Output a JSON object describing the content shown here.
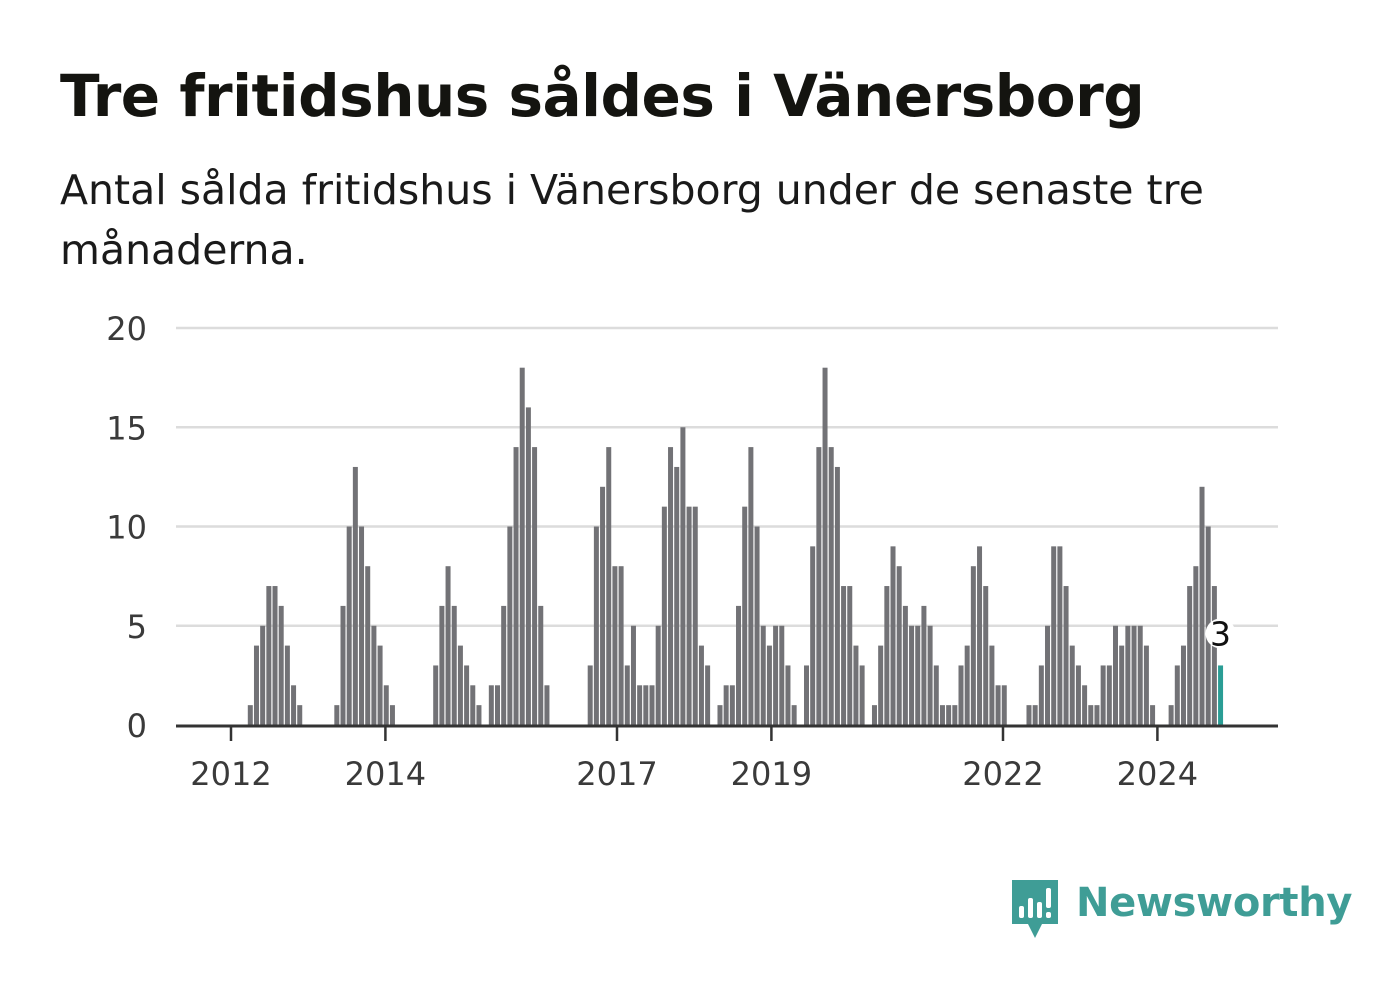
{
  "title": "Tre fritidshus såldes i Vänersborg",
  "subtitle": "Antal sålda fritidshus i Vänersborg under de senaste tre månaderna.",
  "brand": {
    "name": "Newsworthy",
    "color": "#3f9d96",
    "icon": "newsworthy-bar-chart-icon"
  },
  "chart_data": {
    "type": "bar",
    "title": "Tre fritidshus såldes i Vänersborg",
    "subtitle": "Antal sålda fritidshus i Vänersborg under de senaste tre månaderna.",
    "x_ticks": [
      "2012",
      "2014",
      "2017",
      "2019",
      "2022",
      "2024"
    ],
    "y_ticks": [
      0,
      5,
      10,
      15,
      20
    ],
    "ylim": [
      0,
      20
    ],
    "grid": true,
    "bar_color": "#727276",
    "highlight_color": "#2a9d95",
    "highlight_label": "3",
    "values": [
      0,
      0,
      0,
      0,
      0,
      0,
      0,
      0,
      0,
      0,
      1,
      4,
      5,
      7,
      7,
      6,
      4,
      2,
      1,
      0,
      0,
      0,
      0,
      0,
      1,
      6,
      10,
      13,
      10,
      8,
      5,
      4,
      2,
      1,
      0,
      0,
      0,
      0,
      0,
      0,
      3,
      6,
      8,
      6,
      4,
      3,
      2,
      1,
      0,
      2,
      2,
      6,
      10,
      14,
      18,
      16,
      14,
      6,
      2,
      0,
      0,
      0,
      0,
      0,
      0,
      3,
      10,
      12,
      14,
      8,
      8,
      3,
      5,
      2,
      2,
      2,
      5,
      11,
      14,
      13,
      15,
      11,
      11,
      4,
      3,
      0,
      1,
      2,
      2,
      6,
      11,
      14,
      10,
      5,
      4,
      5,
      5,
      3,
      1,
      0,
      3,
      9,
      14,
      18,
      14,
      13,
      7,
      7,
      4,
      3,
      0,
      1,
      4,
      7,
      9,
      8,
      6,
      5,
      5,
      6,
      5,
      3,
      1,
      1,
      1,
      3,
      4,
      8,
      9,
      7,
      4,
      2,
      2,
      0,
      0,
      0,
      1,
      1,
      3,
      5,
      9,
      9,
      7,
      4,
      3,
      2,
      1,
      1,
      3,
      3,
      5,
      4,
      5,
      5,
      5,
      4,
      1,
      0,
      0,
      1,
      3,
      4,
      7,
      8,
      12,
      10,
      7,
      3
    ]
  }
}
